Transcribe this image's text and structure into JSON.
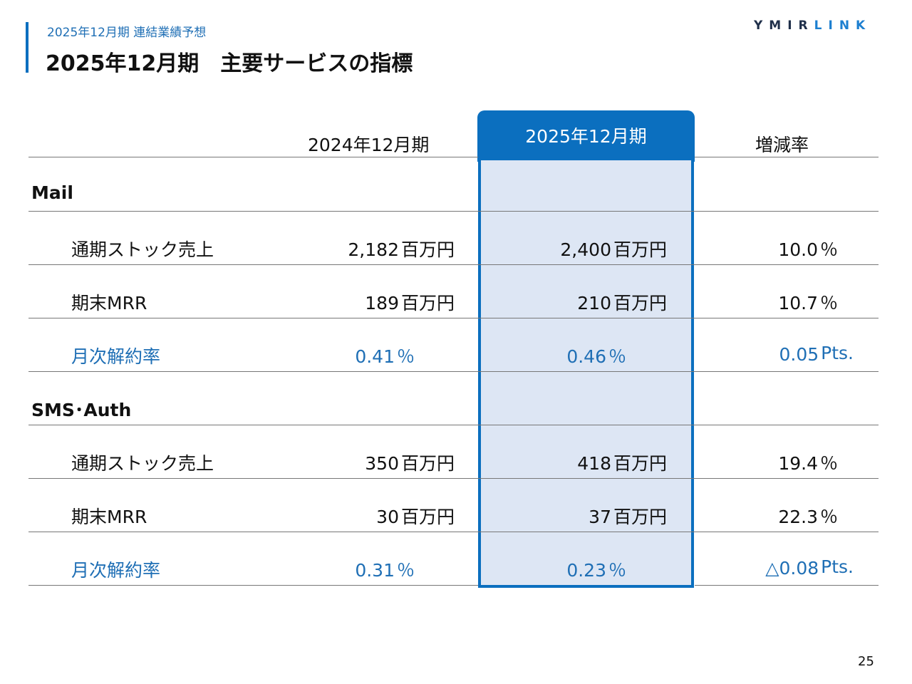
{
  "header": {
    "subtitle": "2025年12月期 連結業績予想",
    "title": "2025年12月期　主要サービスの指標",
    "logo_part1": "YMIR",
    "logo_part2": "LINK"
  },
  "table": {
    "columns": {
      "prev": "2024年12月期",
      "current": "2025年12月期",
      "change": "増減率"
    },
    "units": {
      "money": "百万円",
      "percent": "％",
      "pts": "Pts."
    },
    "sections": [
      {
        "name": "Mail",
        "rows": [
          {
            "label": "通期ストック売上",
            "prev": "2,182",
            "current": "2,400",
            "change": "10.0"
          },
          {
            "label": "期末MRR",
            "prev": "189",
            "current": "210",
            "change": "10.7"
          },
          {
            "label": "月次解約率",
            "prev": "0.41",
            "current": "0.46",
            "change": "0.05"
          }
        ]
      },
      {
        "name": "SMS･Auth",
        "rows": [
          {
            "label": "通期ストック売上",
            "prev": "350",
            "current": "418",
            "change": "19.4"
          },
          {
            "label": "期末MRR",
            "prev": "30",
            "current": "37",
            "change": "22.3"
          },
          {
            "label": "月次解約率",
            "prev": "0.31",
            "current": "0.23",
            "change": "△0.08"
          }
        ]
      }
    ]
  },
  "colors": {
    "accent": "#0b6fbf",
    "highlight_fill": "#dde6f4",
    "churn_text": "#1f6fb5"
  },
  "footer": {
    "page_number": "25"
  }
}
